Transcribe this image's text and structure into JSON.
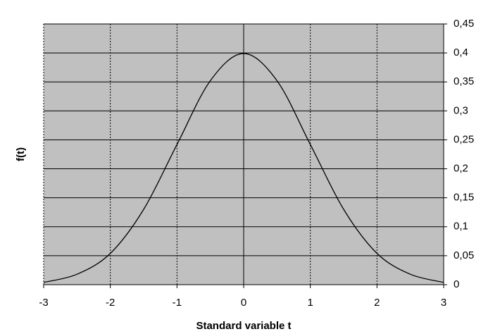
{
  "chart_data": {
    "type": "line",
    "x_label": "Standard variable t",
    "y_label": "f(t)",
    "x": [
      -3,
      -2.5,
      -2,
      -1.5,
      -1,
      -0.5,
      0,
      0.5,
      1,
      1.5,
      2,
      2.5,
      3
    ],
    "values": [
      0.004,
      0.018,
      0.054,
      0.13,
      0.242,
      0.352,
      0.399,
      0.352,
      0.242,
      0.13,
      0.054,
      0.018,
      0.004
    ],
    "color": "#000000",
    "xlim": [
      -3,
      3
    ],
    "xticks": [
      -3,
      -2,
      -1,
      0,
      1,
      2,
      3
    ],
    "ylim": [
      0,
      0.45
    ],
    "yticks": [
      0,
      {
        "value": 0.05,
        "label": "0,05"
      },
      {
        "value": 0.1,
        "label": "0,1"
      },
      {
        "value": 0.15,
        "label": "0,15"
      },
      {
        "value": 0.2,
        "label": "0,2"
      },
      {
        "value": 0.25,
        "label": "0,25"
      },
      {
        "value": 0.3,
        "label": "0,3"
      },
      {
        "value": 0.35,
        "label": "0,35"
      },
      {
        "value": 0.4,
        "label": "0,4"
      },
      {
        "value": 0.45,
        "label": "0,45"
      }
    ],
    "grid": true
  }
}
